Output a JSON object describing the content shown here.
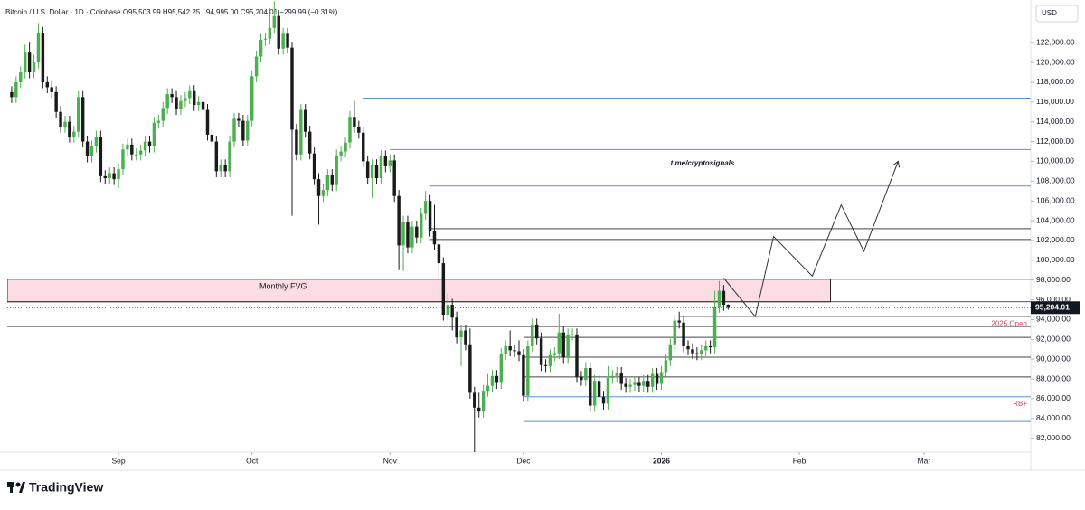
{
  "chart_data": {
    "type": "candlestick",
    "header": "Bitcoin / U.S. Dollar · 1D · Coinbase  O95,503.99  H95,542.25  L94,995.00  C95,204.01  −299.99 (−0.31%)",
    "currency": "USD",
    "branding": "TradingView",
    "watermark": "t.me/cryptosignals",
    "last_price_label": "95,204.01",
    "up_color": "#4caf50",
    "down_color": "#1a1a1a",
    "xlim": [
      -1,
      229
    ],
    "xticks": [
      {
        "value": 24,
        "label": "Sep"
      },
      {
        "value": 54,
        "label": "Oct"
      },
      {
        "value": 85,
        "label": "Nov"
      },
      {
        "value": 115,
        "label": "Dec"
      },
      {
        "value": 146,
        "label": "2026"
      },
      {
        "value": 177,
        "label": "Feb"
      },
      {
        "value": 205,
        "label": "Mar"
      }
    ],
    "ylim": [
      80600,
      125400
    ],
    "yticks": [
      {
        "value": 82000,
        "label": "82,000.00"
      },
      {
        "value": 84000,
        "label": "84,000.00"
      },
      {
        "value": 86000,
        "label": "86,000.00"
      },
      {
        "value": 88000,
        "label": "88,000.00"
      },
      {
        "value": 90000,
        "label": "90,000.00"
      },
      {
        "value": 92000,
        "label": "92,000.00"
      },
      {
        "value": 94000,
        "label": "94,000.00"
      },
      {
        "value": 96000,
        "label": "96,000.00"
      },
      {
        "value": 98000,
        "label": "98,000.00"
      },
      {
        "value": 100000,
        "label": "100,000.00"
      },
      {
        "value": 102000,
        "label": "102,000.00"
      },
      {
        "value": 104000,
        "label": "104,000.00"
      },
      {
        "value": 106000,
        "label": "106,000.00"
      },
      {
        "value": 108000,
        "label": "108,000.00"
      },
      {
        "value": 110000,
        "label": "110,000.00"
      },
      {
        "value": 112000,
        "label": "112,000.00"
      },
      {
        "value": 114000,
        "label": "114,000.00"
      },
      {
        "value": 116000,
        "label": "116,000.00"
      },
      {
        "value": 118000,
        "label": "118,000.00"
      },
      {
        "value": 120000,
        "label": "120,000.00"
      },
      {
        "value": 122000,
        "label": "122,000.00"
      }
    ],
    "fvg": {
      "label": "Monthly FVG",
      "top": 98100,
      "bottom": 95800,
      "from": -1,
      "to": 184,
      "color": "#fbdde3"
    },
    "levels": [
      {
        "price": 116400,
        "from": 79,
        "color": "#5b8fd6"
      },
      {
        "price": 111200,
        "from": 85,
        "color": "#5b8fd6"
      },
      {
        "price": 107500,
        "from": 94,
        "color": "#5b8fd6"
      },
      {
        "price": 103200,
        "from": 94,
        "color": "#444444"
      },
      {
        "price": 102100,
        "from": 94,
        "color": "#444444"
      },
      {
        "price": 93300,
        "from": -1,
        "color": "#555555"
      },
      {
        "price": 94300,
        "from": 150,
        "color": "#888888",
        "label": "2025 Open"
      },
      {
        "price": 92200,
        "from": 115,
        "color": "#444444"
      },
      {
        "price": 90200,
        "from": 115,
        "color": "#444444"
      },
      {
        "price": 88200,
        "from": 115,
        "color": "#444444"
      },
      {
        "price": 86200,
        "from": 115,
        "color": "#5b8fd6",
        "label": "RB+"
      },
      {
        "price": 83700,
        "from": 115,
        "color": "#5b8fd6"
      }
    ],
    "projection": {
      "x": [
        160,
        167.1,
        171.2,
        179.9,
        186.4,
        191.5,
        199.2
      ],
      "y": [
        98200,
        94300,
        102400,
        98400,
        105600,
        100900,
        110000
      ]
    },
    "ohlc": [
      [
        117000,
        117600,
        115900,
        116500
      ],
      [
        116500,
        118600,
        115900,
        118000
      ],
      [
        118000,
        119600,
        117400,
        119000
      ],
      [
        119000,
        121800,
        118400,
        121000
      ],
      [
        121000,
        122000,
        118400,
        119000
      ],
      [
        119000,
        120800,
        118400,
        120000
      ],
      [
        120000,
        124000,
        119400,
        123000
      ],
      [
        123000,
        123600,
        117400,
        118000
      ],
      [
        118000,
        118600,
        116900,
        117500
      ],
      [
        117500,
        118100,
        116400,
        117000
      ],
      [
        117000,
        117600,
        114400,
        115000
      ],
      [
        115000,
        115600,
        112900,
        113500
      ],
      [
        113500,
        114600,
        112900,
        114000
      ],
      [
        114000,
        114600,
        111900,
        112500
      ],
      [
        112500,
        113600,
        111900,
        113000
      ],
      [
        113000,
        117100,
        112400,
        116500
      ],
      [
        116500,
        117100,
        111400,
        112000
      ],
      [
        112000,
        112600,
        109900,
        110500
      ],
      [
        110500,
        112100,
        109900,
        111500
      ],
      [
        111500,
        113100,
        110900,
        112500
      ],
      [
        112500,
        113100,
        107900,
        108500
      ],
      [
        108500,
        109100,
        107700,
        108300
      ],
      [
        108300,
        109400,
        107700,
        108800
      ],
      [
        108800,
        109400,
        107600,
        108200
      ],
      [
        108200,
        109800,
        107300,
        109200
      ],
      [
        109200,
        111800,
        108600,
        111200
      ],
      [
        111200,
        112300,
        110600,
        111700
      ],
      [
        111700,
        112300,
        110100,
        110700
      ],
      [
        110700,
        111300,
        110100,
        110700
      ],
      [
        110700,
        111700,
        110100,
        111100
      ],
      [
        111100,
        112600,
        110500,
        112000
      ],
      [
        112000,
        112600,
        110900,
        111500
      ],
      [
        111500,
        114500,
        110900,
        113900
      ],
      [
        113900,
        114700,
        113300,
        114100
      ],
      [
        114100,
        116000,
        113500,
        115400
      ],
      [
        115400,
        117400,
        114800,
        116800
      ],
      [
        116800,
        117400,
        115900,
        116500
      ],
      [
        116500,
        117100,
        114700,
        115300
      ],
      [
        115300,
        116700,
        114700,
        116100
      ],
      [
        116100,
        117000,
        115500,
        116400
      ],
      [
        116400,
        117700,
        115800,
        117100
      ],
      [
        117100,
        117700,
        115100,
        115700
      ],
      [
        115700,
        116600,
        115100,
        116000
      ],
      [
        116000,
        116600,
        114600,
        115200
      ],
      [
        115200,
        115800,
        112100,
        112700
      ],
      [
        112700,
        113300,
        111400,
        112000
      ],
      [
        112000,
        112600,
        108400,
        109000
      ],
      [
        109000,
        110200,
        108400,
        109600
      ],
      [
        109600,
        110200,
        108400,
        109000
      ],
      [
        109000,
        112600,
        108400,
        112000
      ],
      [
        112000,
        114900,
        111400,
        114300
      ],
      [
        114300,
        114900,
        113500,
        114100
      ],
      [
        114100,
        114700,
        111500,
        112100
      ],
      [
        112100,
        114700,
        111500,
        114100
      ],
      [
        114100,
        119200,
        113500,
        118600
      ],
      [
        118600,
        121200,
        118000,
        120600
      ],
      [
        120600,
        122900,
        120000,
        122300
      ],
      [
        122300,
        123000,
        121700,
        122400
      ],
      [
        122400,
        125500,
        121800,
        123500
      ],
      [
        123500,
        126200,
        122900,
        124700
      ],
      [
        124700,
        125300,
        120800,
        121400
      ],
      [
        121400,
        123500,
        120800,
        122900
      ],
      [
        122900,
        123500,
        120900,
        121500
      ],
      [
        121500,
        122100,
        104500,
        113200
      ],
      [
        113200,
        113800,
        110100,
        110700
      ],
      [
        110700,
        115800,
        110100,
        115200
      ],
      [
        115200,
        115800,
        112400,
        113000
      ],
      [
        113000,
        113600,
        110200,
        110800
      ],
      [
        110800,
        111400,
        107600,
        108200
      ],
      [
        108200,
        108800,
        103600,
        106500
      ],
      [
        106500,
        107700,
        105900,
        107100
      ],
      [
        107100,
        109200,
        106500,
        108600
      ],
      [
        108600,
        109200,
        107000,
        107600
      ],
      [
        107600,
        111200,
        107000,
        110600
      ],
      [
        110600,
        111600,
        110000,
        111000
      ],
      [
        111000,
        112500,
        110400,
        111900
      ],
      [
        111900,
        115100,
        111300,
        114500
      ],
      [
        114500,
        116100,
        112900,
        113500
      ],
      [
        113500,
        114100,
        112300,
        112900
      ],
      [
        112900,
        113500,
        109400,
        110000
      ],
      [
        110000,
        110600,
        107700,
        108300
      ],
      [
        108300,
        110200,
        106300,
        109600
      ],
      [
        109600,
        110200,
        107700,
        108300
      ],
      [
        108300,
        111100,
        107700,
        110500
      ],
      [
        110500,
        111100,
        108900,
        109500
      ],
      [
        109500,
        110700,
        108900,
        110100
      ],
      [
        110100,
        110700,
        105900,
        106500
      ],
      [
        106500,
        107100,
        99000,
        101500
      ],
      [
        101500,
        104500,
        98900,
        103900
      ],
      [
        103900,
        104500,
        100700,
        101300
      ],
      [
        101300,
        104000,
        100700,
        103400
      ],
      [
        103400,
        104000,
        101700,
        102300
      ],
      [
        102300,
        105300,
        101700,
        104700
      ],
      [
        104700,
        107000,
        104100,
        106000
      ],
      [
        106000,
        106600,
        102400,
        103000
      ],
      [
        103000,
        105600,
        101000,
        101600
      ],
      [
        101600,
        102200,
        98200,
        99700
      ],
      [
        99700,
        100300,
        93900,
        94500
      ],
      [
        94500,
        96600,
        93900,
        95500
      ],
      [
        95500,
        96100,
        92900,
        94200
      ],
      [
        94200,
        94800,
        91600,
        92200
      ],
      [
        92200,
        93500,
        89300,
        92900
      ],
      [
        92900,
        93500,
        90900,
        91500
      ],
      [
        91500,
        93100,
        86000,
        86600
      ],
      [
        86600,
        87200,
        80600,
        85100
      ],
      [
        85100,
        86600,
        84100,
        84700
      ],
      [
        84700,
        87400,
        84100,
        86800
      ],
      [
        86800,
        88500,
        86200,
        87300
      ],
      [
        87300,
        88900,
        86700,
        88300
      ],
      [
        88300,
        88900,
        87000,
        87600
      ],
      [
        87600,
        91100,
        87000,
        90500
      ],
      [
        90500,
        91900,
        89900,
        91300
      ],
      [
        91300,
        92900,
        90300,
        90900
      ],
      [
        90900,
        91500,
        90200,
        90800
      ],
      [
        90800,
        91900,
        89800,
        90400
      ],
      [
        90400,
        91000,
        85700,
        86300
      ],
      [
        86300,
        91900,
        85700,
        91300
      ],
      [
        91300,
        94100,
        90700,
        93500
      ],
      [
        93500,
        94100,
        91500,
        92100
      ],
      [
        92100,
        92700,
        88800,
        89400
      ],
      [
        89400,
        90000,
        88700,
        89300
      ],
      [
        89300,
        91000,
        88700,
        90400
      ],
      [
        90400,
        91200,
        89800,
        90600
      ],
      [
        90600,
        94600,
        90000,
        92700
      ],
      [
        92700,
        93300,
        89600,
        90200
      ],
      [
        90200,
        93100,
        89600,
        92500
      ],
      [
        92500,
        93100,
        91900,
        92500
      ],
      [
        92500,
        93100,
        87600,
        88200
      ],
      [
        88200,
        88800,
        87300,
        87900
      ],
      [
        87900,
        89700,
        87300,
        89100
      ],
      [
        89100,
        89700,
        84700,
        85300
      ],
      [
        85300,
        88400,
        84700,
        87800
      ],
      [
        87800,
        88400,
        85600,
        86200
      ],
      [
        86200,
        86800,
        84900,
        85500
      ],
      [
        85500,
        89300,
        84900,
        88100
      ],
      [
        88100,
        88900,
        87500,
        88300
      ],
      [
        88300,
        89200,
        87700,
        88600
      ],
      [
        88600,
        89200,
        86900,
        87500
      ],
      [
        87500,
        88100,
        86600,
        87200
      ],
      [
        87200,
        88000,
        86600,
        87400
      ],
      [
        87400,
        88200,
        86800,
        87600
      ],
      [
        87600,
        88200,
        86700,
        87300
      ],
      [
        87300,
        88400,
        86700,
        87800
      ],
      [
        87800,
        88400,
        86600,
        87200
      ],
      [
        87200,
        89100,
        86600,
        88500
      ],
      [
        88500,
        89100,
        86900,
        87500
      ],
      [
        87500,
        89300,
        86900,
        88700
      ],
      [
        88700,
        90500,
        88100,
        89900
      ],
      [
        89900,
        92100,
        89300,
        91500
      ],
      [
        91500,
        94500,
        90900,
        93900
      ],
      [
        93900,
        94800,
        93100,
        93700
      ],
      [
        93700,
        94300,
        90700,
        91300
      ],
      [
        91300,
        91900,
        90400,
        91000
      ],
      [
        91000,
        91600,
        90000,
        90600
      ],
      [
        90600,
        91200,
        89900,
        90500
      ],
      [
        90500,
        91500,
        89900,
        90900
      ],
      [
        90900,
        91900,
        90300,
        91300
      ],
      [
        91300,
        91900,
        90600,
        91200
      ],
      [
        91200,
        96900,
        90600,
        95300
      ],
      [
        95300,
        97900,
        94700,
        96900
      ],
      [
        96900,
        97500,
        94900,
        95500
      ],
      [
        95503.99,
        95542.25,
        94995,
        95204.01
      ]
    ]
  }
}
